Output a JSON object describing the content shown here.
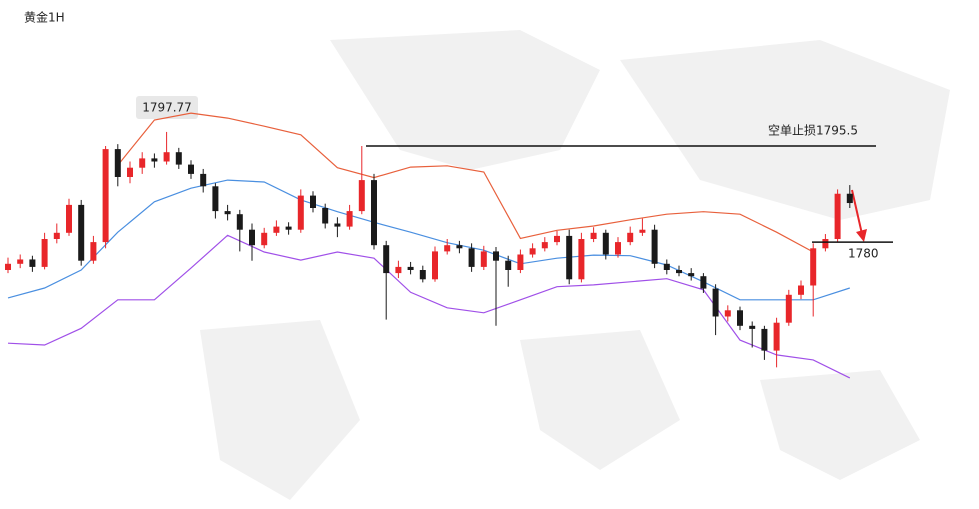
{
  "chart_data": {
    "type": "candlestick",
    "title": "黄金1H",
    "up_color": "#e8262a",
    "down_color": "#1a1a1a",
    "ylim": [
      1758,
      1803
    ],
    "ohlc": [
      [
        1775.5,
        1777.5,
        1775.0,
        1776.5
      ],
      [
        1776.5,
        1778.0,
        1775.8,
        1777.2
      ],
      [
        1777.2,
        1777.8,
        1775.2,
        1776.0
      ],
      [
        1776.0,
        1781.5,
        1775.6,
        1780.5
      ],
      [
        1780.5,
        1783.0,
        1779.8,
        1781.5
      ],
      [
        1781.5,
        1787.0,
        1781.0,
        1786.0
      ],
      [
        1786.0,
        1786.8,
        1776.2,
        1777.0
      ],
      [
        1777.0,
        1781.0,
        1776.5,
        1780.0
      ],
      [
        1780.0,
        1795.5,
        1779.0,
        1795.0
      ],
      [
        1795.0,
        1795.8,
        1789.0,
        1790.5
      ],
      [
        1790.5,
        1793.0,
        1789.5,
        1792.0
      ],
      [
        1792.0,
        1794.5,
        1791.0,
        1793.5
      ],
      [
        1793.5,
        1794.3,
        1792.0,
        1793.0
      ],
      [
        1793.0,
        1797.77,
        1792.5,
        1794.5
      ],
      [
        1794.5,
        1795.2,
        1791.8,
        1792.5
      ],
      [
        1792.5,
        1793.2,
        1790.2,
        1791.0
      ],
      [
        1791.0,
        1791.8,
        1788.0,
        1789.0
      ],
      [
        1789.0,
        1789.5,
        1783.8,
        1785.0
      ],
      [
        1785.0,
        1786.0,
        1783.5,
        1784.5
      ],
      [
        1784.5,
        1785.2,
        1778.5,
        1782.0
      ],
      [
        1782.0,
        1783.0,
        1777.0,
        1779.5
      ],
      [
        1779.5,
        1782.3,
        1779.0,
        1781.5
      ],
      [
        1781.5,
        1783.5,
        1781.0,
        1782.5
      ],
      [
        1782.5,
        1783.2,
        1781.2,
        1782.0
      ],
      [
        1782.0,
        1788.5,
        1781.5,
        1787.5
      ],
      [
        1787.5,
        1788.2,
        1784.8,
        1785.5
      ],
      [
        1785.5,
        1786.2,
        1782.2,
        1783.0
      ],
      [
        1783.0,
        1784.0,
        1780.8,
        1782.5
      ],
      [
        1782.5,
        1786.0,
        1782.0,
        1785.0
      ],
      [
        1785.0,
        1795.5,
        1784.5,
        1790.0
      ],
      [
        1790.0,
        1791.0,
        1778.8,
        1779.5
      ],
      [
        1779.5,
        1780.2,
        1767.5,
        1775.0
      ],
      [
        1775.0,
        1777.0,
        1774.2,
        1776.0
      ],
      [
        1776.0,
        1776.8,
        1774.8,
        1775.5
      ],
      [
        1775.5,
        1776.2,
        1773.5,
        1774.0
      ],
      [
        1774.0,
        1779.3,
        1773.6,
        1778.5
      ],
      [
        1778.5,
        1780.5,
        1778.0,
        1779.5
      ],
      [
        1779.5,
        1780.2,
        1778.2,
        1779.0
      ],
      [
        1779.0,
        1779.8,
        1775.2,
        1776.0
      ],
      [
        1776.0,
        1779.4,
        1775.5,
        1778.5
      ],
      [
        1778.5,
        1779.2,
        1766.5,
        1777.0
      ],
      [
        1777.0,
        1777.8,
        1772.8,
        1775.5
      ],
      [
        1775.5,
        1778.8,
        1775.0,
        1778.0
      ],
      [
        1778.0,
        1779.8,
        1777.5,
        1779.0
      ],
      [
        1779.0,
        1780.8,
        1778.5,
        1780.0
      ],
      [
        1780.0,
        1781.8,
        1779.5,
        1781.0
      ],
      [
        1781.0,
        1782.0,
        1773.2,
        1774.0
      ],
      [
        1774.0,
        1781.5,
        1773.5,
        1780.5
      ],
      [
        1780.5,
        1782.4,
        1780.0,
        1781.5
      ],
      [
        1781.5,
        1782.0,
        1777.2,
        1778.0
      ],
      [
        1778.0,
        1780.8,
        1777.5,
        1780.0
      ],
      [
        1780.0,
        1782.5,
        1779.5,
        1781.5
      ],
      [
        1781.5,
        1783.8,
        1781.0,
        1782.0
      ],
      [
        1782.0,
        1782.8,
        1775.8,
        1776.5
      ],
      [
        1776.5,
        1777.2,
        1774.8,
        1775.5
      ],
      [
        1775.5,
        1776.2,
        1774.5,
        1775.0
      ],
      [
        1775.0,
        1775.8,
        1773.8,
        1774.5
      ],
      [
        1774.5,
        1775.0,
        1771.8,
        1772.5
      ],
      [
        1772.5,
        1773.2,
        1765.0,
        1768.0
      ],
      [
        1768.0,
        1769.8,
        1767.2,
        1769.0
      ],
      [
        1769.0,
        1769.6,
        1765.8,
        1766.5
      ],
      [
        1766.5,
        1767.2,
        1763.0,
        1766.0
      ],
      [
        1766.0,
        1766.5,
        1761.0,
        1762.5
      ],
      [
        1762.5,
        1767.8,
        1759.8,
        1767.0
      ],
      [
        1767.0,
        1772.3,
        1766.5,
        1771.5
      ],
      [
        1771.5,
        1773.8,
        1770.8,
        1773.0
      ],
      [
        1773.0,
        1779.8,
        1768.0,
        1779.0
      ],
      [
        1779.0,
        1781.3,
        1778.5,
        1780.5
      ],
      [
        1780.5,
        1788.5,
        1780.0,
        1787.8
      ],
      [
        1787.8,
        1789.2,
        1785.5,
        1786.3
      ]
    ],
    "band_x": [
      0,
      3,
      6,
      9,
      12,
      15,
      18,
      21,
      24,
      27,
      30,
      33,
      36,
      39,
      42,
      45,
      48,
      51,
      54,
      57,
      60,
      63,
      66,
      69
    ],
    "upper": {
      "color": "#e8603c",
      "values": [
        null,
        null,
        null,
        1792.4,
        1799.7,
        1800.8,
        1800.0,
        1798.7,
        1797.3,
        1792.0,
        1790.4,
        1792.1,
        1792.3,
        1791.3,
        1780.6,
        1781.9,
        1782.6,
        1783.6,
        1784.5,
        1784.9,
        1784.5,
        1781.6,
        1778.4,
        null
      ]
    },
    "middle": {
      "color": "#4a8fe0",
      "values": [
        1771.0,
        1772.6,
        1775.5,
        1781.6,
        1786.5,
        1788.7,
        1790.0,
        1789.7,
        1786.8,
        1784.9,
        1783.2,
        1781.6,
        1779.9,
        1778.7,
        1776.5,
        1777.4,
        1777.9,
        1777.8,
        1776.3,
        1773.6,
        1770.7,
        1770.7,
        1770.7,
        1772.6
      ]
    },
    "lower": {
      "color": "#a050e8",
      "values": [
        1763.7,
        1763.4,
        1766.1,
        1770.7,
        1770.7,
        1775.8,
        1781.1,
        1778.4,
        1777.1,
        1778.4,
        1777.4,
        1771.9,
        1769.4,
        1768.6,
        1770.7,
        1772.8,
        1773.1,
        1773.6,
        1774.1,
        1772.3,
        1764.2,
        1761.8,
        1761.0,
        1758.1
      ]
    },
    "levels": [
      {
        "value": 1795.5,
        "label": "空单止损1795.5"
      },
      {
        "value": 1780
      }
    ]
  }
}
